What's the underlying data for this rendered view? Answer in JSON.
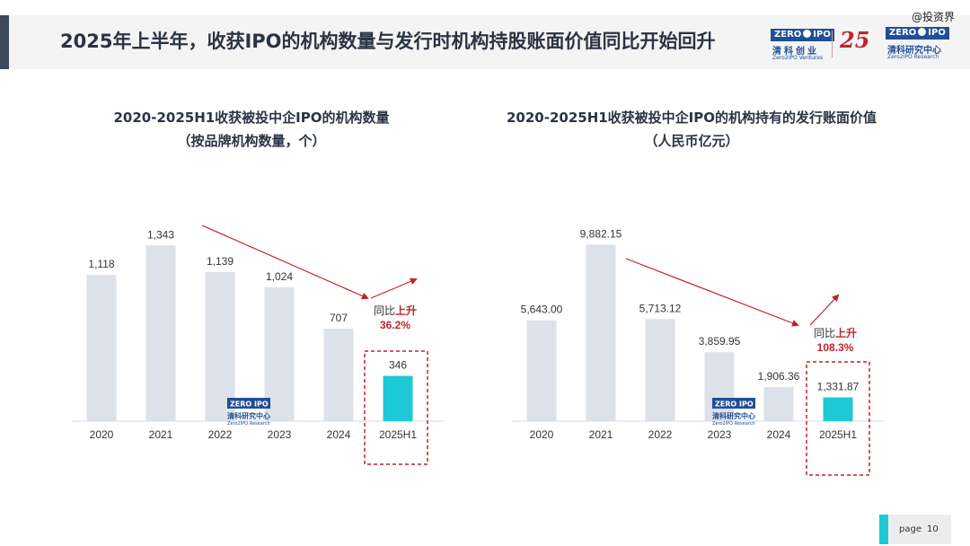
{
  "header": {
    "title": "2025年上半年，收获IPO的机构数量与发行时机构持股账面价值同比开始回升"
  },
  "watermark": "@投资界",
  "brand": {
    "logo1_box_left": "ZERO",
    "logo1_box_right": "IPO",
    "logo1_cn": "清科创业",
    "logo1_en": "Zero2IPO Ventures",
    "logo_25": "25",
    "logo2_box_left": "ZERO",
    "logo2_box_right": "IPO",
    "logo2_cn": "清科研究中心",
    "logo2_en": "Zero2IPO Research"
  },
  "chart_watermark": {
    "box_left": "ZERO",
    "box_right": "IPO",
    "cn": "清科研究中心",
    "en": "Zero2IPO Research"
  },
  "colors": {
    "bar": "#dde1ea",
    "highlight": "#1ec9d6",
    "arrow": "#c0242a",
    "text": "#2b3445"
  },
  "chart_data": [
    {
      "type": "bar",
      "title": "2020-2025H1收获被投中企IPO的机构数量",
      "subtitle": "（按品牌机构数量，个）",
      "categories": [
        "2020",
        "2021",
        "2022",
        "2023",
        "2024",
        "2025H1"
      ],
      "values": [
        1118,
        1343,
        1139,
        1024,
        707,
        346
      ],
      "value_labels": [
        "1,118",
        "1,343",
        "1,139",
        "1,024",
        "707",
        "346"
      ],
      "highlight_index": 5,
      "annotation": {
        "prefix": "同比",
        "emph": "上升",
        "value": "36.2%"
      },
      "ylim": [
        0,
        1400
      ],
      "grid": false,
      "legend": "none"
    },
    {
      "type": "bar",
      "title": "2020-2025H1收获被投中企IPO的机构持有的发行账面价值",
      "subtitle": "（人民币亿元）",
      "categories": [
        "2020",
        "2021",
        "2022",
        "2023",
        "2024",
        "2025H1"
      ],
      "values": [
        5643.0,
        9882.15,
        5713.12,
        3859.95,
        1906.36,
        1331.87
      ],
      "value_labels": [
        "5,643.00",
        "9,882.15",
        "5,713.12",
        "3,859.95",
        "1,906.36",
        "1,331.87"
      ],
      "highlight_index": 5,
      "annotation": {
        "prefix": "同比",
        "emph": "上升",
        "value": "108.3%"
      },
      "ylim": [
        0,
        10000
      ],
      "grid": false,
      "legend": "none"
    }
  ],
  "footer": {
    "page_label": "page",
    "page_number": "10"
  }
}
